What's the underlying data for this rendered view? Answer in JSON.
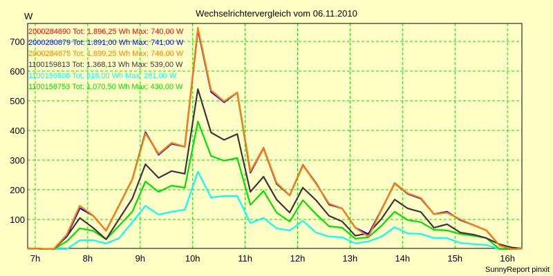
{
  "chart_data": {
    "type": "line",
    "title": "Wechselrichtervergleich vom 06.11.2010",
    "ylabel": "W",
    "xlabel": "",
    "footer": "SunnyReport pinxit",
    "ylim": [
      0,
      760
    ],
    "xlim": [
      7,
      16.5
    ],
    "yticks": [
      "100",
      "200",
      "300",
      "400",
      "500",
      "600",
      "700"
    ],
    "ytick_values": [
      100,
      200,
      300,
      400,
      500,
      600,
      700
    ],
    "xticks": [
      "7h",
      "8h",
      "9h",
      "10h",
      "11h",
      "12h",
      "13h",
      "14h",
      "15h",
      "16h"
    ],
    "xtick_values": [
      7,
      8,
      9,
      10,
      11,
      12,
      13,
      14,
      15,
      16
    ],
    "grid": true,
    "legend_placement": "top-left",
    "x_start": 7.35,
    "x_step": 0.25,
    "series": [
      {
        "name": "2000284690",
        "legend": "2000284690 Tot: 1.896,25 Wh Max: 740,00 W",
        "color": "#ff0000",
        "values": [
          0,
          48,
          146,
          113,
          62,
          148,
          235,
          392,
          321,
          358,
          345,
          740,
          535,
          498,
          528,
          262,
          341,
          223,
          181,
          284,
          221,
          153,
          137,
          72,
          42,
          133,
          222,
          188,
          172,
          118,
          123,
          100,
          81,
          63,
          12,
          0
        ]
      },
      {
        "name": "2000280879",
        "legend": "2000280879 Tot: 1.891,00 Wh Max: 741,00 W",
        "color": "#0000ff",
        "values": [
          0,
          44,
          138,
          113,
          62,
          148,
          235,
          394,
          318,
          355,
          345,
          741,
          530,
          495,
          528,
          258,
          339,
          220,
          181,
          282,
          223,
          150,
          137,
          72,
          50,
          133,
          221,
          186,
          170,
          118,
          126,
          98,
          81,
          63,
          12,
          0
        ]
      },
      {
        "name": "2000284675",
        "legend": "2000284675 Tot: 1.899,25 Wh Max: 746,00 W",
        "color": "#ff8000",
        "values": [
          0,
          48,
          146,
          113,
          62,
          148,
          235,
          390,
          321,
          358,
          345,
          746,
          535,
          498,
          528,
          262,
          339,
          223,
          181,
          282,
          221,
          153,
          137,
          72,
          42,
          133,
          221,
          188,
          172,
          118,
          123,
          100,
          81,
          63,
          12,
          0
        ]
      },
      {
        "name": "1100159813",
        "legend": "1100159813 Tot: 1.368,13 Wh Max: 539,00 W",
        "color": "#403040",
        "values": [
          0,
          42,
          105,
          72,
          33,
          102,
          170,
          286,
          240,
          263,
          254,
          539,
          393,
          368,
          388,
          193,
          244,
          167,
          123,
          207,
          165,
          112,
          93,
          45,
          53,
          102,
          167,
          137,
          125,
          72,
          84,
          56,
          49,
          37,
          16,
          5
        ]
      },
      {
        "name": "1100159808",
        "legend": "1100159808 Tot: 618,00 Wh Max: 261,00 W",
        "color": "#00ffff",
        "values": [
          0,
          0,
          30,
          30,
          19,
          37,
          91,
          146,
          116,
          126,
          133,
          261,
          174,
          179,
          179,
          88,
          105,
          70,
          63,
          95,
          56,
          42,
          40,
          19,
          26,
          42,
          74,
          53,
          51,
          37,
          37,
          21,
          17,
          14,
          0,
          0
        ]
      },
      {
        "name": "1100158753",
        "legend": "1100158753 Tot: 1.070,50 Wh Max: 430,00 W",
        "color": "#00e000",
        "values": [
          0,
          26,
          70,
          62,
          33,
          79,
          126,
          228,
          193,
          214,
          207,
          430,
          314,
          298,
          307,
          149,
          196,
          123,
          93,
          165,
          118,
          77,
          72,
          35,
          40,
          79,
          126,
          98,
          91,
          65,
          63,
          51,
          45,
          37,
          0,
          0
        ]
      }
    ]
  }
}
